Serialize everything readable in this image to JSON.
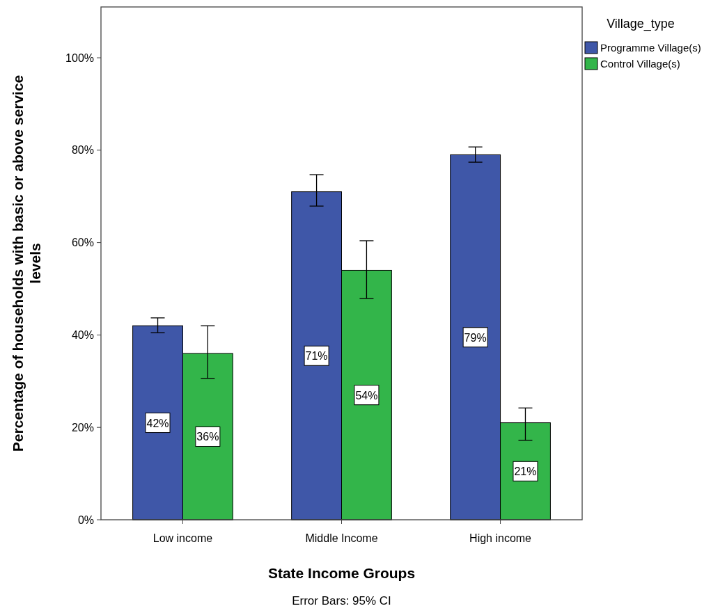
{
  "chart_data": {
    "type": "bar",
    "xlabel": "State Income Groups",
    "ylabel": "Percentage of households with basic or above service levels",
    "legend_title": "Village_type",
    "legend": "top right",
    "annotations": [
      "Error Bars: 95% CI"
    ],
    "categories": [
      "Low income",
      "Middle Income",
      "High income"
    ],
    "series": [
      {
        "name": "Programme Village(s)",
        "color": "#3f57a8",
        "values": [
          42,
          71,
          79
        ],
        "value_labels": [
          "42%",
          "71%",
          "79%"
        ],
        "errors": [
          [
            40.5,
            43.7
          ],
          [
            67.9,
            74.7
          ],
          [
            77.4,
            80.7
          ]
        ]
      },
      {
        "name": "Control Village(s)",
        "color": "#33b54a",
        "values": [
          36,
          54,
          21
        ],
        "value_labels": [
          "36%",
          "54%",
          "21%"
        ],
        "errors": [
          [
            30.6,
            42.0
          ],
          [
            47.9,
            60.4
          ],
          [
            17.2,
            24.2
          ]
        ]
      }
    ],
    "ylim": [
      0,
      111
    ],
    "yticks": [
      {
        "value": 0,
        "label": "0%"
      },
      {
        "value": 20,
        "label": "20%"
      },
      {
        "value": 40,
        "label": "40%"
      },
      {
        "value": 60,
        "label": "60%"
      },
      {
        "value": 80,
        "label": "80%"
      },
      {
        "value": 100,
        "label": "100%"
      }
    ]
  }
}
